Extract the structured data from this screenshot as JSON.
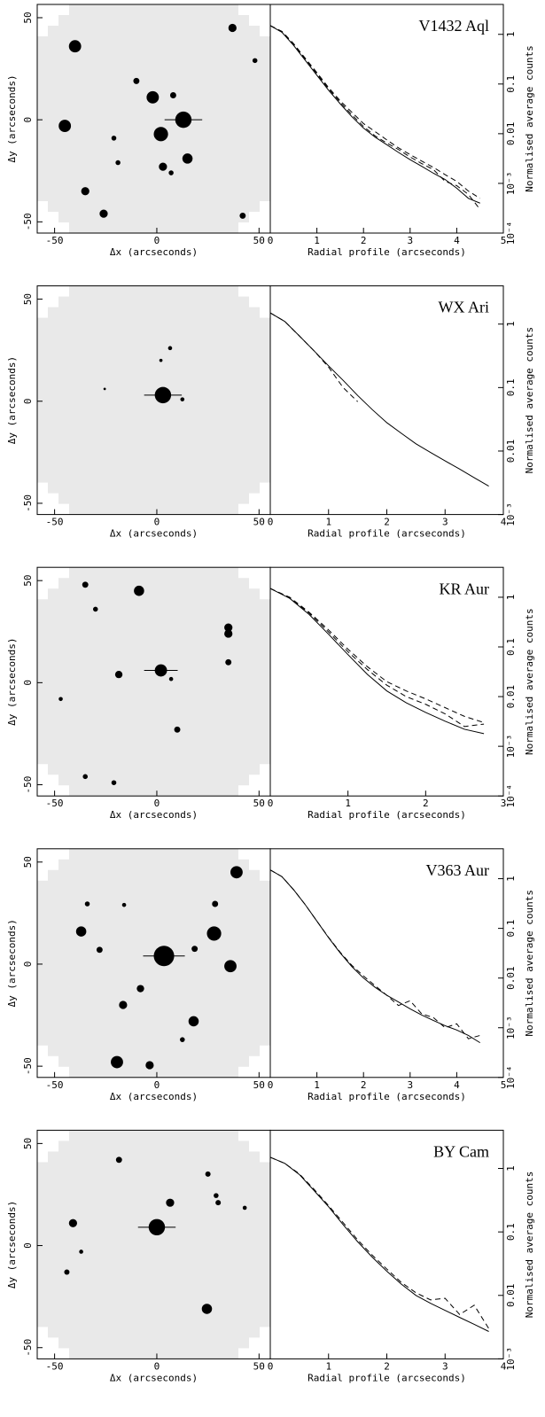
{
  "chart_data": [
    {
      "type": "image",
      "xlabel": "Δx (arcseconds)",
      "ylabel": "Δy (arcseconds)",
      "xlim": [
        -58.5,
        55.5
      ],
      "ylim": [
        -55.5,
        56.5
      ],
      "xticks": [
        -50,
        0,
        50
      ],
      "yticks": [
        -50,
        0,
        50
      ],
      "stars": {
        "x": [
          13,
          2,
          -2,
          -40,
          -45,
          15,
          3,
          -35,
          -26,
          37,
          -10,
          8,
          -21,
          -19,
          48,
          42,
          7
        ],
        "y": [
          0,
          -7,
          11,
          36,
          -3,
          -19,
          -23,
          -35,
          -46,
          45,
          19,
          12,
          -9,
          -21,
          29,
          -47,
          -26
        ],
        "size": [
          4,
          3.5,
          3,
          3,
          3,
          2.5,
          2,
          2,
          2,
          2,
          1.5,
          1.5,
          1.2,
          1.2,
          1.2,
          1.5,
          1.2
        ]
      }
    },
    {
      "type": "line",
      "title": "V1432 Aql",
      "xlabel": "Radial profile (arcseconds)",
      "ylabel": "Normalised average counts",
      "log_y": true,
      "x": [
        0,
        0.25,
        0.5,
        0.75,
        1,
        1.25,
        1.5,
        1.75,
        2,
        2.25,
        2.5,
        2.75,
        3,
        3.25,
        3.5,
        3.75,
        4,
        4.25,
        4.5
      ],
      "xlim": [
        0,
        5
      ],
      "xticks": [
        0,
        1,
        2,
        3,
        4,
        5
      ],
      "ylim": [
        0.0001,
        4
      ],
      "yticks": [
        1,
        0.1,
        0.01,
        {
          "value": 0.001,
          "label": "10⁻³"
        },
        {
          "value": 0.0001,
          "label": "10⁻⁴"
        }
      ],
      "series": [
        {
          "style": "solid",
          "color": "#000000",
          "values": [
            1.5,
            1.1,
            0.6,
            0.3,
            0.15,
            0.075,
            0.04,
            0.022,
            0.013,
            0.0085,
            0.006,
            0.0042,
            0.003,
            0.0022,
            0.0016,
            0.0012,
            0.0008,
            0.0005,
            0.0004
          ]
        },
        {
          "style": "dashed",
          "color": "#000000",
          "values": [
            1.5,
            1.15,
            0.65,
            0.33,
            0.17,
            0.085,
            0.046,
            0.027,
            0.016,
            0.011,
            0.0075,
            0.0052,
            0.0038,
            0.0028,
            0.0021,
            0.0015,
            0.0011,
            0.0007,
            0.0005
          ]
        },
        {
          "style": "dashed",
          "color": "#000000",
          "values": [
            1.5,
            1.12,
            0.62,
            0.32,
            0.16,
            0.08,
            0.043,
            0.024,
            0.014,
            0.009,
            0.0065,
            0.0048,
            0.0034,
            0.0025,
            0.0019,
            0.0011,
            0.0009,
            0.0006,
            0.0003
          ]
        }
      ]
    },
    {
      "type": "image",
      "xlabel": "Δx (arcseconds)",
      "ylabel": "Δy (arcseconds)",
      "xlim": [
        -58.5,
        55.5
      ],
      "ylim": [
        -55.5,
        56.5
      ],
      "xticks": [
        -50,
        0,
        50
      ],
      "yticks": [
        -50,
        0,
        50
      ],
      "stars": {
        "x": [
          3,
          6.5,
          12.5,
          2,
          -25.5
        ],
        "y": [
          3,
          26,
          0.9,
          20,
          6
        ],
        "size": [
          4,
          1,
          1,
          0.8,
          0.6
        ]
      }
    },
    {
      "type": "line",
      "title": "WX Ari",
      "xlabel": "Radial profile (arcseconds)",
      "ylabel": "Normalised average counts",
      "log_y": true,
      "x": [
        0,
        0.25,
        0.5,
        0.75,
        1,
        1.25,
        1.5,
        1.75,
        2,
        2.25,
        2.5,
        2.75,
        3,
        3.25,
        3.5,
        3.75
      ],
      "xlim": [
        0,
        4
      ],
      "xticks": [
        0,
        1,
        2,
        3,
        4
      ],
      "ylim": [
        0.001,
        4
      ],
      "yticks": [
        1,
        0.1,
        0.01,
        {
          "value": 0.001,
          "label": "10⁻³"
        }
      ],
      "series": [
        {
          "style": "solid",
          "color": "#000000",
          "values": [
            1.5,
            1.1,
            0.65,
            0.38,
            0.22,
            0.13,
            0.075,
            0.045,
            0.028,
            0.019,
            0.013,
            0.0095,
            0.007,
            0.0052,
            0.0038,
            0.0028
          ]
        },
        {
          "style": "dashed",
          "color": "#000000",
          "values": [
            1.5,
            1.1,
            0.65,
            0.38,
            0.21,
            0.1,
            0.06,
            null,
            null,
            null,
            null,
            null,
            null,
            null,
            null,
            null
          ]
        }
      ]
    },
    {
      "type": "image",
      "xlabel": "Δx (arcseconds)",
      "ylabel": "Δy (arcseconds)",
      "xlim": [
        -58.5,
        55.5
      ],
      "ylim": [
        -55.5,
        56.5
      ],
      "xticks": [
        -50,
        0,
        50
      ],
      "yticks": [
        -50,
        0,
        50
      ],
      "stars": {
        "x": [
          2,
          -8.7,
          -35,
          35,
          35,
          -30,
          -18.6,
          10,
          35,
          -35,
          -21,
          7,
          -47
        ],
        "y": [
          6,
          45,
          48,
          27,
          24,
          36,
          4,
          -23,
          10,
          -46,
          -49,
          1.8,
          -8
        ],
        "size": [
          3,
          2.5,
          1.5,
          2,
          2,
          1.2,
          1.8,
          1.5,
          1.5,
          1.2,
          1.2,
          1,
          1
        ]
      }
    },
    {
      "type": "line",
      "title": "KR Aur",
      "xlabel": "Radial profile (arcseconds)",
      "ylabel": "Normalised average counts",
      "log_y": true,
      "x": [
        0,
        0.25,
        0.5,
        0.75,
        1,
        1.25,
        1.5,
        1.75,
        2,
        2.25,
        2.5,
        2.75
      ],
      "xlim": [
        0,
        3
      ],
      "xticks": [
        0,
        1,
        2,
        3
      ],
      "ylim": [
        0.0001,
        4
      ],
      "yticks": [
        1,
        0.1,
        0.01,
        {
          "value": 0.001,
          "label": "10⁻³"
        },
        {
          "value": 0.0001,
          "label": "10⁻⁴"
        }
      ],
      "series": [
        {
          "style": "solid",
          "color": "#000000",
          "values": [
            1.5,
            0.95,
            0.45,
            0.18,
            0.07,
            0.028,
            0.013,
            0.0075,
            0.0048,
            0.0032,
            0.0022,
            0.0018
          ]
        },
        {
          "style": "dashed",
          "color": "#000000",
          "values": [
            1.5,
            1,
            0.5,
            0.22,
            0.09,
            0.04,
            0.02,
            0.013,
            0.009,
            0.006,
            0.004,
            0.003
          ]
        },
        {
          "style": "dashed",
          "color": "#000000",
          "values": [
            1.5,
            0.98,
            0.48,
            0.2,
            0.08,
            0.035,
            0.017,
            0.01,
            0.007,
            0.0045,
            0.0025,
            0.0028
          ]
        }
      ]
    },
    {
      "type": "image",
      "xlabel": "Δx (arcseconds)",
      "ylabel": "Δy (arcseconds)",
      "xlim": [
        -58.5,
        55.5
      ],
      "ylim": [
        -55.5,
        56.5
      ],
      "xticks": [
        -50,
        0,
        50
      ],
      "yticks": [
        -50,
        0,
        50
      ],
      "stars": {
        "x": [
          3.5,
          39,
          28,
          36,
          -19.5,
          -3.5,
          18,
          -16.5,
          -37,
          -8,
          -28,
          28.5,
          -34,
          18.5,
          12.5,
          -16
        ],
        "y": [
          4,
          45,
          15,
          -1,
          -48,
          -49.5,
          -28,
          -20,
          16,
          -12,
          7,
          29.5,
          29.5,
          7.5,
          -37,
          29
        ],
        "size": [
          5,
          3,
          3.5,
          3,
          3,
          2,
          2.5,
          2,
          2.5,
          1.8,
          1.5,
          1.5,
          1.2,
          1.5,
          1.2,
          1
        ]
      }
    },
    {
      "type": "line",
      "title": "V363 Aur",
      "xlabel": "Radial profile (arcseconds)",
      "ylabel": "Normalised average counts",
      "log_y": true,
      "x": [
        0,
        0.25,
        0.5,
        0.75,
        1,
        1.25,
        1.5,
        1.75,
        2,
        2.25,
        2.5,
        2.75,
        3,
        3.25,
        3.5,
        3.75,
        4,
        4.25,
        4.5
      ],
      "xlim": [
        0,
        5
      ],
      "xticks": [
        0,
        1,
        2,
        3,
        4,
        5
      ],
      "ylim": [
        0.0001,
        4
      ],
      "yticks": [
        1,
        0.1,
        0.01,
        {
          "value": 0.001,
          "label": "10⁻³"
        },
        {
          "value": 0.0001,
          "label": "10⁻⁴"
        }
      ],
      "series": [
        {
          "style": "solid",
          "color": "#000000",
          "values": [
            1.5,
            1.1,
            0.6,
            0.3,
            0.14,
            0.065,
            0.032,
            0.017,
            0.01,
            0.0065,
            0.0045,
            0.0033,
            0.0024,
            0.0018,
            0.0014,
            0.0011,
            0.0009,
            0.0007,
            0.0005
          ]
        },
        {
          "style": "dashed",
          "color": "#000000",
          "values": [
            1.5,
            1.1,
            0.6,
            0.3,
            0.14,
            0.066,
            0.033,
            0.018,
            0.011,
            0.007,
            0.0045,
            0.0028,
            0.0035,
            0.0019,
            0.0016,
            0.001,
            0.0012,
            0.0006,
            0.0007
          ]
        }
      ]
    },
    {
      "type": "image",
      "xlabel": "Δx (arcseconds)",
      "ylabel": "Δy (arcseconds)",
      "xlim": [
        -58.5,
        55.5
      ],
      "ylim": [
        -55.5,
        56.5
      ],
      "xticks": [
        -50,
        0,
        50
      ],
      "yticks": [
        -50,
        0,
        50
      ],
      "stars": {
        "x": [
          0,
          24.5,
          -41,
          6.5,
          -18.5,
          25,
          30,
          29,
          -44,
          -37,
          43
        ],
        "y": [
          9,
          -31,
          11,
          21,
          42,
          35,
          21,
          24.5,
          -13,
          -3,
          18.5
        ],
        "size": [
          4,
          2.5,
          2,
          2,
          1.5,
          1.3,
          1.3,
          1.2,
          1.3,
          1,
          1
        ]
      }
    },
    {
      "type": "line",
      "title": "BY Cam",
      "xlabel": "Radial profile (arcseconds)",
      "ylabel": "Normalised average counts",
      "log_y": true,
      "x": [
        0,
        0.25,
        0.5,
        0.75,
        1,
        1.25,
        1.5,
        1.75,
        2,
        2.25,
        2.5,
        2.75,
        3,
        3.25,
        3.5,
        3.75
      ],
      "xlim": [
        0,
        4
      ],
      "xticks": [
        0,
        1,
        2,
        3,
        4
      ],
      "ylim": [
        0.001,
        4
      ],
      "yticks": [
        1,
        0.1,
        0.01,
        {
          "value": 0.001,
          "label": "10⁻³"
        }
      ],
      "series": [
        {
          "style": "solid",
          "color": "#000000",
          "values": [
            1.5,
            1.2,
            0.8,
            0.45,
            0.25,
            0.13,
            0.07,
            0.04,
            0.024,
            0.015,
            0.01,
            0.0075,
            0.0058,
            0.0045,
            0.0035,
            0.0027
          ]
        },
        {
          "style": "dashed",
          "color": "#000000",
          "values": [
            1.5,
            1.2,
            0.82,
            0.47,
            0.26,
            0.14,
            0.075,
            0.043,
            0.026,
            0.016,
            0.011,
            0.0085,
            0.009,
            0.005,
            0.007,
            0.003
          ]
        }
      ]
    }
  ]
}
